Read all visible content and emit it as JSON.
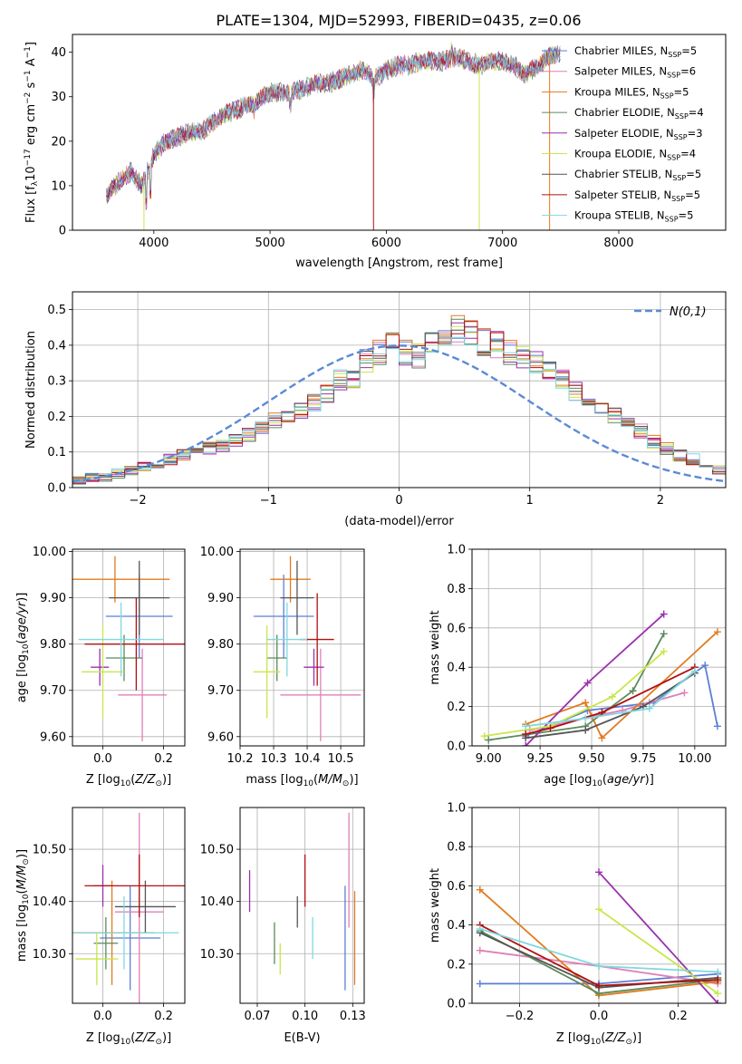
{
  "title": "PLATE=1304, MJD=52993, FIBERID=0435, z=0.06",
  "series": [
    {
      "name": "Chabrier MILES, N",
      "sub": "SSP",
      "tail": "=5",
      "color": "#5b7fd6"
    },
    {
      "name": "Salpeter MILES, N",
      "sub": "SSP",
      "tail": "=6",
      "color": "#e07fb8"
    },
    {
      "name": "Kroupa MILES, N",
      "sub": "SSP",
      "tail": "=5",
      "color": "#e07b20"
    },
    {
      "name": "Chabrier ELODIE, N",
      "sub": "SSP",
      "tail": "=4",
      "color": "#5a8a5a"
    },
    {
      "name": "Salpeter ELODIE, N",
      "sub": "SSP",
      "tail": "=3",
      "color": "#9b2fae"
    },
    {
      "name": "Kroupa ELODIE, N",
      "sub": "SSP",
      "tail": "=4",
      "color": "#c8e64a"
    },
    {
      "name": "Chabrier STELIB, N",
      "sub": "SSP",
      "tail": "=5",
      "color": "#555555"
    },
    {
      "name": "Salpeter STELIB, N",
      "sub": "SSP",
      "tail": "=5",
      "color": "#b01010"
    },
    {
      "name": "Kroupa STELIB, N",
      "sub": "SSP",
      "tail": "=5",
      "color": "#7fd8e0"
    }
  ],
  "chart_data": [
    {
      "type": "line",
      "id": "spectrum",
      "xlabel": "wavelength [Angstrom, rest frame]",
      "ylabel": "Flux [f_λ 10^-17 erg cm^-2 s^-1 A^-1]",
      "xlim": [
        3300,
        8920
      ],
      "ylim": [
        0,
        44
      ],
      "xticks": [
        4000,
        5000,
        6000,
        7000,
        8000
      ],
      "yticks": [
        0,
        10,
        20,
        30,
        40
      ],
      "x": [
        3600,
        3700,
        3800,
        3900,
        4000,
        4100,
        4200,
        4300,
        4400,
        4500,
        4600,
        4700,
        4800,
        4900,
        5000,
        5100,
        5200,
        5300,
        5400,
        5500,
        5600,
        5700,
        5800,
        5900,
        6000,
        6100,
        6200,
        6300,
        6400,
        6500,
        6600,
        6700,
        6800,
        6900,
        7000,
        7100,
        7200,
        7300,
        7400,
        7500
      ],
      "values": [
        8,
        11,
        13,
        10,
        17,
        20,
        21,
        22,
        22,
        24,
        26,
        27,
        28,
        29,
        31,
        31,
        31,
        32,
        33,
        33,
        34,
        35,
        36,
        34,
        36,
        37,
        37,
        38,
        38,
        38,
        39,
        38,
        37,
        38,
        38,
        37,
        35,
        37,
        39,
        40
      ]
    },
    {
      "type": "bar",
      "id": "residuals",
      "xlabel": "(data-model)/error",
      "ylabel": "Normed distribution",
      "xlim": [
        -2.5,
        2.5
      ],
      "ylim": [
        0,
        0.55
      ],
      "xticks": [
        -2,
        -1,
        0,
        1,
        2
      ],
      "yticks": [
        0,
        0.1,
        0.2,
        0.3,
        0.4,
        0.5
      ],
      "legend": "N(0,1)",
      "legend_color": "#5b8ad6",
      "bin_width": 0.1,
      "bin_start": -2.5,
      "values": [
        0.02,
        0.03,
        0.03,
        0.04,
        0.05,
        0.06,
        0.07,
        0.08,
        0.09,
        0.1,
        0.11,
        0.12,
        0.13,
        0.15,
        0.17,
        0.19,
        0.2,
        0.22,
        0.24,
        0.26,
        0.3,
        0.31,
        0.36,
        0.38,
        0.4,
        0.38,
        0.37,
        0.4,
        0.42,
        0.45,
        0.43,
        0.41,
        0.4,
        0.38,
        0.37,
        0.35,
        0.32,
        0.3,
        0.27,
        0.25,
        0.23,
        0.2,
        0.18,
        0.16,
        0.13,
        0.11,
        0.09,
        0.08,
        0.06,
        0.05
      ]
    },
    {
      "type": "scatter",
      "id": "age-vs-Z",
      "xlabel": "Z [log10(Z/Z⊙)]",
      "ylabel": "age [log10(age/yr)]",
      "xlim": [
        -0.1,
        0.27
      ],
      "ylim": [
        9.58,
        10.005
      ],
      "xticks": [
        0.0,
        0.2
      ],
      "yticks": [
        9.6,
        9.7,
        9.8,
        9.9,
        10.0
      ],
      "points": [
        {
          "x": 0.12,
          "y": 9.86,
          "xe": 0.11,
          "ye": 0.09
        },
        {
          "x": 0.13,
          "y": 9.69,
          "xe": 0.08,
          "ye": 0.1
        },
        {
          "x": 0.04,
          "y": 9.94,
          "xe": 0.18,
          "ye": 0.05
        },
        {
          "x": 0.07,
          "y": 9.77,
          "xe": 0.06,
          "ye": 0.05
        },
        {
          "x": -0.01,
          "y": 9.75,
          "xe": 0.03,
          "ye": 0.04
        },
        {
          "x": 0.0,
          "y": 9.74,
          "xe": 0.07,
          "ye": 0.1
        },
        {
          "x": 0.12,
          "y": 9.9,
          "xe": 0.1,
          "ye": 0.08
        },
        {
          "x": 0.11,
          "y": 9.8,
          "xe": 0.17,
          "ye": 0.1
        },
        {
          "x": 0.06,
          "y": 9.81,
          "xe": 0.14,
          "ye": 0.08
        }
      ]
    },
    {
      "type": "scatter",
      "id": "age-vs-mass",
      "xlabel": "mass [log10(M/M⊙)]",
      "ylabel": "",
      "xlim": [
        10.2,
        10.57
      ],
      "ylim": [
        9.58,
        10.005
      ],
      "xticks": [
        10.2,
        10.3,
        10.4,
        10.5
      ],
      "yticks": [
        9.6,
        9.7,
        9.8,
        9.9,
        10.0
      ],
      "points": [
        {
          "x": 10.33,
          "y": 9.86,
          "xe": 0.09,
          "ye": 0.09
        },
        {
          "x": 10.44,
          "y": 9.69,
          "xe": 0.12,
          "ye": 0.1
        },
        {
          "x": 10.35,
          "y": 9.94,
          "xe": 0.06,
          "ye": 0.05
        },
        {
          "x": 10.31,
          "y": 9.77,
          "xe": 0.03,
          "ye": 0.05
        },
        {
          "x": 10.42,
          "y": 9.75,
          "xe": 0.03,
          "ye": 0.04
        },
        {
          "x": 10.28,
          "y": 9.74,
          "xe": 0.04,
          "ye": 0.1
        },
        {
          "x": 10.37,
          "y": 9.9,
          "xe": 0.05,
          "ye": 0.08
        },
        {
          "x": 10.43,
          "y": 9.81,
          "xe": 0.05,
          "ye": 0.1
        },
        {
          "x": 10.34,
          "y": 9.81,
          "xe": 0.06,
          "ye": 0.08
        }
      ]
    },
    {
      "type": "line",
      "id": "weight-vs-age",
      "xlabel": "age [log10(age/yr)]",
      "ylabel": "mass weight",
      "xlim": [
        8.92,
        10.15
      ],
      "ylim": [
        0,
        1.0
      ],
      "xticks": [
        9.0,
        9.25,
        9.5,
        9.75,
        10.0
      ],
      "yticks": [
        0.0,
        0.2,
        0.4,
        0.6,
        0.8,
        1.0
      ],
      "lines": [
        {
          "x": [
            9.18,
            9.48,
            9.8,
            10.05,
            10.11
          ],
          "y": [
            0.05,
            0.18,
            0.22,
            0.41,
            0.1
          ]
        },
        {
          "x": [
            9.2,
            9.3,
            9.5,
            9.65,
            9.78,
            9.95
          ],
          "y": [
            0.08,
            0.1,
            0.15,
            0.18,
            0.22,
            0.27
          ]
        },
        {
          "x": [
            9.18,
            9.47,
            9.55,
            10.11
          ],
          "y": [
            0.11,
            0.22,
            0.04,
            0.58
          ]
        },
        {
          "x": [
            9.0,
            9.47,
            9.7,
            9.85
          ],
          "y": [
            0.03,
            0.1,
            0.28,
            0.57
          ]
        },
        {
          "x": [
            9.18,
            9.48,
            9.85
          ],
          "y": [
            0.0,
            0.32,
            0.67
          ]
        },
        {
          "x": [
            8.98,
            9.3,
            9.6,
            9.85
          ],
          "y": [
            0.05,
            0.1,
            0.25,
            0.48
          ]
        },
        {
          "x": [
            9.18,
            9.47,
            9.75,
            10.0
          ],
          "y": [
            0.04,
            0.08,
            0.2,
            0.37
          ]
        },
        {
          "x": [
            9.18,
            9.3,
            9.55,
            10.0
          ],
          "y": [
            0.06,
            0.09,
            0.17,
            0.4
          ]
        },
        {
          "x": [
            9.18,
            9.47,
            9.78,
            10.0
          ],
          "y": [
            0.1,
            0.14,
            0.19,
            0.38
          ]
        }
      ]
    },
    {
      "type": "scatter",
      "id": "mass-vs-Z",
      "xlabel": "Z [log10(Z/Z⊙)]",
      "ylabel": "mass [log10(M/M⊙)]",
      "xlim": [
        -0.1,
        0.27
      ],
      "ylim": [
        10.205,
        10.58
      ],
      "xticks": [
        0.0,
        0.2
      ],
      "yticks": [
        10.3,
        10.4,
        10.5
      ],
      "points": [
        {
          "x": 0.09,
          "y": 10.33,
          "xe": 0.1,
          "ye": 0.1
        },
        {
          "x": 0.12,
          "y": 10.38,
          "xe": 0.08,
          "ye": 0.19
        },
        {
          "x": 0.03,
          "y": 10.34,
          "xe": 0.14,
          "ye": 0.1
        },
        {
          "x": 0.01,
          "y": 10.32,
          "xe": 0.04,
          "ye": 0.05
        },
        {
          "x": 0.0,
          "y": 10.43,
          "xe": 0.03,
          "ye": 0.04
        },
        {
          "x": -0.02,
          "y": 10.29,
          "xe": 0.07,
          "ye": 0.05
        },
        {
          "x": 0.14,
          "y": 10.39,
          "xe": 0.1,
          "ye": 0.05
        },
        {
          "x": 0.12,
          "y": 10.43,
          "xe": 0.18,
          "ye": 0.06
        },
        {
          "x": 0.07,
          "y": 10.34,
          "xe": 0.18,
          "ye": 0.07
        }
      ]
    },
    {
      "type": "scatter",
      "id": "mass-vs-EBV",
      "xlabel": "E(B-V)",
      "ylabel": "",
      "xlim": [
        0.066,
        0.131
      ],
      "ylim": [
        10.205,
        10.58
      ],
      "xticks": [
        0.075,
        0.1,
        0.125
      ],
      "yticks": [
        10.3,
        10.4,
        10.5
      ],
      "points": [
        {
          "x": 0.121,
          "y": 10.33,
          "xe": 0.0,
          "ye": 0.1
        },
        {
          "x": 0.123,
          "y": 10.46,
          "xe": 0.0,
          "ye": 0.11
        },
        {
          "x": 0.126,
          "y": 10.33,
          "xe": 0.0,
          "ye": 0.09
        },
        {
          "x": 0.084,
          "y": 10.32,
          "xe": 0.0,
          "ye": 0.04
        },
        {
          "x": 0.071,
          "y": 10.42,
          "xe": 0.0,
          "ye": 0.04
        },
        {
          "x": 0.087,
          "y": 10.29,
          "xe": 0.0,
          "ye": 0.03
        },
        {
          "x": 0.096,
          "y": 10.38,
          "xe": 0.0,
          "ye": 0.03
        },
        {
          "x": 0.1,
          "y": 10.44,
          "xe": 0.0,
          "ye": 0.05
        },
        {
          "x": 0.104,
          "y": 10.33,
          "xe": 0.0,
          "ye": 0.04
        }
      ]
    },
    {
      "type": "line",
      "id": "weight-vs-Z",
      "xlabel": "Z [log10(Z/Z⊙)]",
      "ylabel": "mass weight",
      "xlim": [
        -0.32,
        0.32
      ],
      "ylim": [
        0,
        1.0
      ],
      "xticks": [
        -0.2,
        0.0,
        0.2
      ],
      "yticks": [
        0.0,
        0.2,
        0.4,
        0.6,
        0.8,
        1.0
      ],
      "lines": [
        {
          "x": [
            -0.3,
            0.0,
            0.3
          ],
          "y": [
            0.1,
            0.1,
            0.15
          ]
        },
        {
          "x": [
            -0.3,
            0.0,
            0.3
          ],
          "y": [
            0.27,
            0.19,
            0.1
          ]
        },
        {
          "x": [
            -0.3,
            0.0,
            0.3
          ],
          "y": [
            0.58,
            0.04,
            0.11
          ]
        },
        {
          "x": [
            -0.3,
            0.0,
            0.3
          ],
          "y": [
            0.37,
            0.05,
            0.12
          ]
        },
        {
          "x": [
            0.0,
            0.3
          ],
          "y": [
            0.67,
            0.0
          ]
        },
        {
          "x": [
            0.0,
            0.3
          ],
          "y": [
            0.48,
            0.05
          ]
        },
        {
          "x": [
            -0.3,
            0.0,
            0.3
          ],
          "y": [
            0.36,
            0.08,
            0.13
          ]
        },
        {
          "x": [
            -0.3,
            0.0,
            0.3
          ],
          "y": [
            0.4,
            0.09,
            0.12
          ]
        },
        {
          "x": [
            -0.3,
            0.0,
            0.3
          ],
          "y": [
            0.38,
            0.19,
            0.16
          ]
        }
      ]
    }
  ]
}
